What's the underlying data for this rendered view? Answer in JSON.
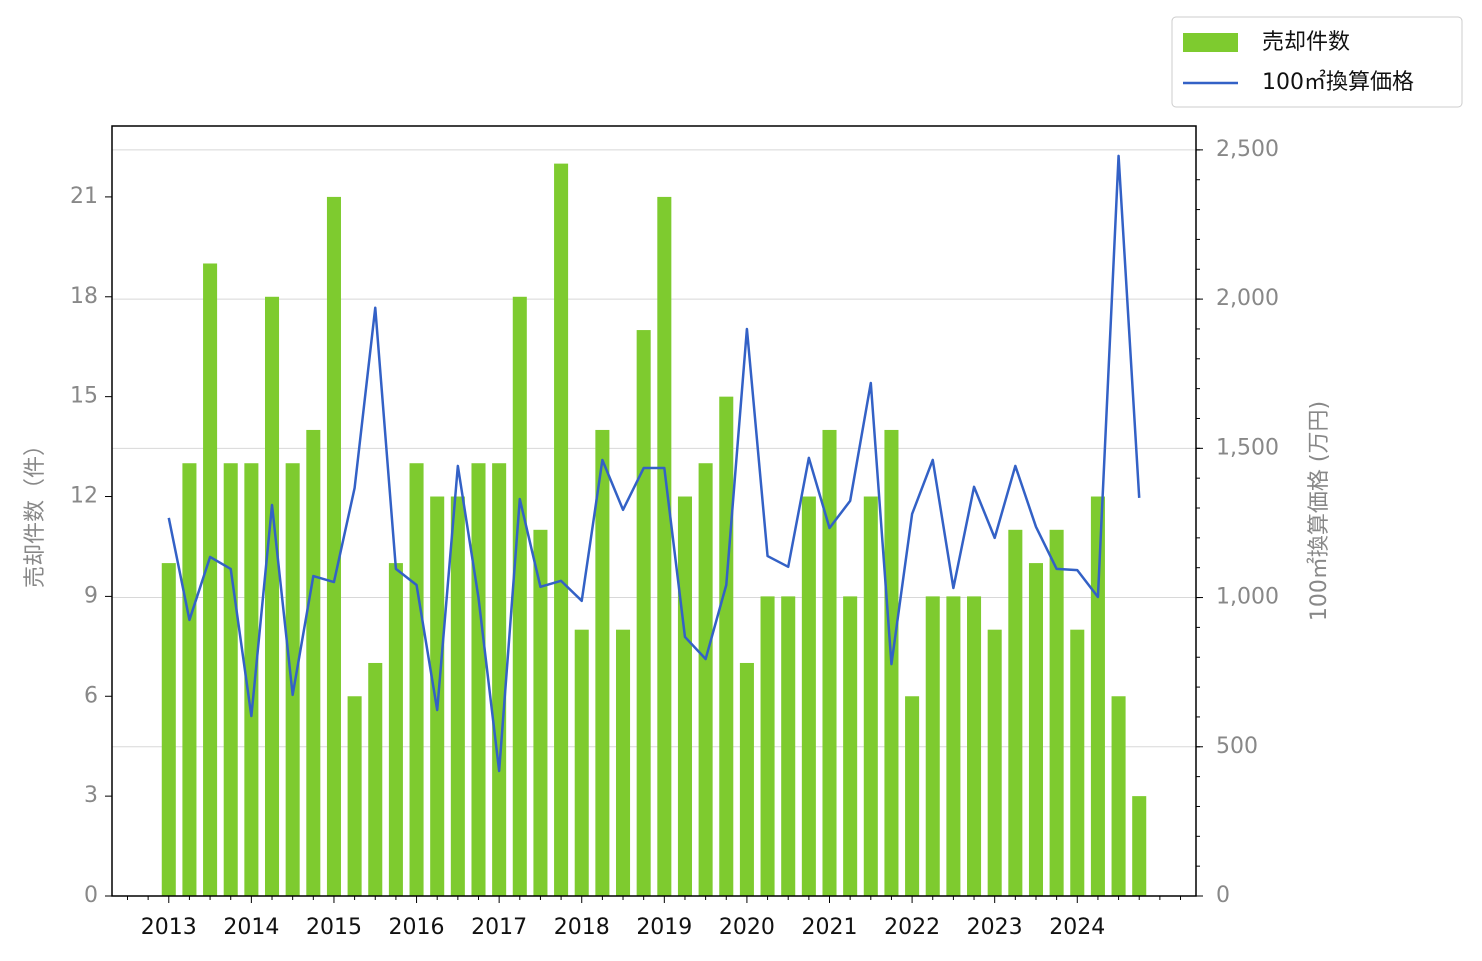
{
  "chart_data": {
    "type": "bar-line",
    "y_label": "売却件数（件）",
    "y2_label": "100㎡換算価格 (万円)",
    "categories": [
      "2013",
      null,
      null,
      null,
      "2014",
      null,
      null,
      null,
      "2015",
      null,
      null,
      null,
      "2016",
      null,
      null,
      null,
      "2017",
      null,
      null,
      null,
      "2018",
      null,
      null,
      null,
      "2019",
      null,
      null,
      null,
      "2020",
      null,
      null,
      null,
      "2021",
      null,
      null,
      null,
      "2022",
      null,
      null,
      null,
      "2023",
      null,
      null,
      null,
      "2024",
      null,
      null,
      null
    ],
    "series": [
      {
        "name": "売却件数",
        "color": "#7ecb2f",
        "type": "bar",
        "values": [
          10,
          13,
          19,
          13,
          13,
          18,
          13,
          14,
          21,
          6,
          7,
          10,
          13,
          12,
          12,
          13,
          13,
          18,
          11,
          22,
          8,
          14,
          8,
          17,
          21,
          12,
          13,
          15,
          7,
          9,
          9,
          12,
          14,
          9,
          12,
          14,
          6,
          9,
          9,
          9,
          8,
          11,
          10,
          11,
          8,
          12,
          6,
          3
        ]
      },
      {
        "name": "100㎡換算価格",
        "color": "#3361c6",
        "type": "line",
        "axis": "y2",
        "values": [
          1267,
          925,
          1136,
          1096,
          603,
          1310,
          674,
          1072,
          1052,
          1367,
          1971,
          1096,
          1042,
          623,
          1441,
          999,
          419,
          1330,
          1036,
          1056,
          989,
          1461,
          1294,
          1434,
          1434,
          868,
          794,
          1042,
          1900,
          1139,
          1103,
          1468,
          1233,
          1324,
          1719,
          777,
          1280,
          1461,
          1032,
          1371,
          1200,
          1441,
          1237,
          1096,
          1092,
          1002,
          2480,
          1334
        ]
      }
    ],
    "ylim": [
      0,
      23.13
    ],
    "yticks": [
      0,
      3,
      6,
      9,
      12,
      15,
      18,
      21
    ],
    "y2lim": [
      0,
      2580
    ],
    "y2ticks": [
      0,
      500,
      {
        "value": 1000,
        "label": "1,000"
      },
      {
        "value": 1500,
        "label": "1,500"
      },
      {
        "value": 2000,
        "label": "2,000"
      },
      {
        "value": 2500,
        "label": "2,500"
      }
    ],
    "grid": true,
    "legend": "upper right"
  }
}
